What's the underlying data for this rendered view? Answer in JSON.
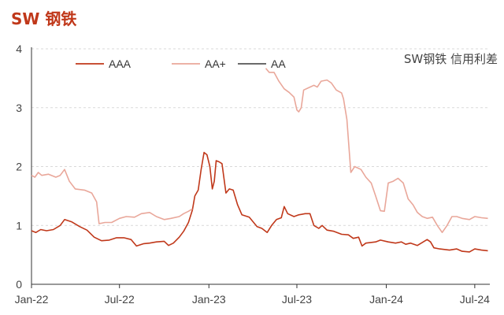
{
  "title": "SW 钢铁",
  "chart_data": {
    "type": "line",
    "subtitle": "SW钢铁 信用利差",
    "x_range": [
      "2022-01-01",
      "2024-08-01"
    ],
    "x_ticks": [
      "Jan-22",
      "Jul-22",
      "Jan-23",
      "Jul-23",
      "Jan-24",
      "Jul-24"
    ],
    "x_tick_dates": [
      "2022-01-01",
      "2022-07-01",
      "2023-01-01",
      "2023-07-01",
      "2024-01-01",
      "2024-07-01"
    ],
    "ylim": [
      0,
      4
    ],
    "y_ticks": [
      "0",
      "1",
      "2",
      "3",
      "4"
    ],
    "grid": true,
    "legend_position": "top",
    "series": [
      {
        "name": "AAA",
        "color": "#c0381a",
        "points": [
          [
            "2022-01-01",
            0.91
          ],
          [
            "2022-01-10",
            0.88
          ],
          [
            "2022-01-20",
            0.93
          ],
          [
            "2022-02-01",
            0.91
          ],
          [
            "2022-02-15",
            0.93
          ],
          [
            "2022-03-01",
            1.0
          ],
          [
            "2022-03-10",
            1.1
          ],
          [
            "2022-03-25",
            1.06
          ],
          [
            "2022-04-10",
            0.98
          ],
          [
            "2022-04-25",
            0.92
          ],
          [
            "2022-05-10",
            0.8
          ],
          [
            "2022-05-25",
            0.74
          ],
          [
            "2022-06-10",
            0.75
          ],
          [
            "2022-06-25",
            0.79
          ],
          [
            "2022-07-10",
            0.79
          ],
          [
            "2022-07-25",
            0.76
          ],
          [
            "2022-08-05",
            0.65
          ],
          [
            "2022-08-20",
            0.69
          ],
          [
            "2022-09-01",
            0.7
          ],
          [
            "2022-09-15",
            0.72
          ],
          [
            "2022-10-01",
            0.73
          ],
          [
            "2022-10-10",
            0.66
          ],
          [
            "2022-10-20",
            0.7
          ],
          [
            "2022-11-01",
            0.8
          ],
          [
            "2022-11-10",
            0.9
          ],
          [
            "2022-11-20",
            1.05
          ],
          [
            "2022-11-28",
            1.26
          ],
          [
            "2022-12-03",
            1.5
          ],
          [
            "2022-12-10",
            1.6
          ],
          [
            "2022-12-16",
            1.95
          ],
          [
            "2022-12-22",
            2.24
          ],
          [
            "2022-12-28",
            2.2
          ],
          [
            "2023-01-03",
            2.0
          ],
          [
            "2023-01-08",
            1.62
          ],
          [
            "2023-01-12",
            1.75
          ],
          [
            "2023-01-16",
            2.1
          ],
          [
            "2023-01-22",
            2.08
          ],
          [
            "2023-01-28",
            2.05
          ],
          [
            "2023-02-05",
            1.55
          ],
          [
            "2023-02-12",
            1.62
          ],
          [
            "2023-02-20",
            1.6
          ],
          [
            "2023-03-01",
            1.35
          ],
          [
            "2023-03-10",
            1.18
          ],
          [
            "2023-03-25",
            1.14
          ],
          [
            "2023-04-10",
            0.98
          ],
          [
            "2023-04-20",
            0.95
          ],
          [
            "2023-05-01",
            0.88
          ],
          [
            "2023-05-10",
            1.0
          ],
          [
            "2023-05-20",
            1.1
          ],
          [
            "2023-05-30",
            1.13
          ],
          [
            "2023-06-05",
            1.32
          ],
          [
            "2023-06-12",
            1.2
          ],
          [
            "2023-06-25",
            1.15
          ],
          [
            "2023-07-05",
            1.18
          ],
          [
            "2023-07-18",
            1.2
          ],
          [
            "2023-07-28",
            1.2
          ],
          [
            "2023-08-05",
            1.0
          ],
          [
            "2023-08-15",
            0.95
          ],
          [
            "2023-08-22",
            1.0
          ],
          [
            "2023-09-01",
            0.92
          ],
          [
            "2023-09-15",
            0.9
          ],
          [
            "2023-10-01",
            0.85
          ],
          [
            "2023-10-15",
            0.84
          ],
          [
            "2023-10-25",
            0.78
          ],
          [
            "2023-11-05",
            0.8
          ],
          [
            "2023-11-12",
            0.65
          ],
          [
            "2023-11-20",
            0.7
          ],
          [
            "2023-12-10",
            0.72
          ],
          [
            "2023-12-20",
            0.75
          ],
          [
            "2024-01-05",
            0.72
          ],
          [
            "2024-01-20",
            0.7
          ],
          [
            "2024-02-01",
            0.72
          ],
          [
            "2024-02-10",
            0.68
          ],
          [
            "2024-02-20",
            0.7
          ],
          [
            "2024-03-05",
            0.66
          ],
          [
            "2024-03-25",
            0.76
          ],
          [
            "2024-04-01",
            0.72
          ],
          [
            "2024-04-08",
            0.62
          ],
          [
            "2024-04-20",
            0.6
          ],
          [
            "2024-05-10",
            0.58
          ],
          [
            "2024-05-25",
            0.6
          ],
          [
            "2024-06-05",
            0.56
          ],
          [
            "2024-06-20",
            0.55
          ],
          [
            "2024-07-01",
            0.6
          ],
          [
            "2024-07-15",
            0.58
          ],
          [
            "2024-07-28",
            0.57
          ]
        ]
      },
      {
        "name": "AA+",
        "color": "#e9a79a",
        "points": [
          [
            "2022-01-01",
            1.85
          ],
          [
            "2022-01-08",
            1.82
          ],
          [
            "2022-01-15",
            1.9
          ],
          [
            "2022-01-22",
            1.85
          ],
          [
            "2022-02-05",
            1.87
          ],
          [
            "2022-02-20",
            1.82
          ],
          [
            "2022-03-01",
            1.85
          ],
          [
            "2022-03-10",
            1.95
          ],
          [
            "2022-03-20",
            1.75
          ],
          [
            "2022-04-01",
            1.62
          ],
          [
            "2022-04-20",
            1.6
          ],
          [
            "2022-05-05",
            1.55
          ],
          [
            "2022-05-15",
            1.4
          ],
          [
            "2022-05-20",
            1.03
          ],
          [
            "2022-06-01",
            1.05
          ],
          [
            "2022-06-15",
            1.05
          ],
          [
            "2022-07-01",
            1.12
          ],
          [
            "2022-07-15",
            1.15
          ],
          [
            "2022-08-01",
            1.14
          ],
          [
            "2022-08-15",
            1.2
          ],
          [
            "2022-09-01",
            1.22
          ],
          [
            "2022-09-15",
            1.15
          ],
          [
            "2022-10-01",
            1.1
          ],
          [
            "2022-10-15",
            1.12
          ],
          [
            "2022-11-01",
            1.15
          ],
          [
            "2022-11-10",
            1.2
          ],
          [
            "2022-11-20",
            1.24
          ],
          [
            "2022-11-28",
            1.28
          ],
          [
            "2022-12-01",
            null
          ],
          [
            "2023-04-25",
            null
          ],
          [
            "2023-04-28",
            3.67
          ],
          [
            "2023-05-05",
            3.6
          ],
          [
            "2023-05-15",
            3.6
          ],
          [
            "2023-05-25",
            3.45
          ],
          [
            "2023-06-05",
            3.32
          ],
          [
            "2023-06-15",
            3.26
          ],
          [
            "2023-06-25",
            3.18
          ],
          [
            "2023-07-01",
            2.96
          ],
          [
            "2023-07-05",
            2.93
          ],
          [
            "2023-07-10",
            3.0
          ],
          [
            "2023-07-15",
            3.3
          ],
          [
            "2023-07-28",
            3.35
          ],
          [
            "2023-08-05",
            3.38
          ],
          [
            "2023-08-12",
            3.35
          ],
          [
            "2023-08-20",
            3.45
          ],
          [
            "2023-09-01",
            3.47
          ],
          [
            "2023-09-10",
            3.42
          ],
          [
            "2023-09-20",
            3.3
          ],
          [
            "2023-10-01",
            3.25
          ],
          [
            "2023-10-05",
            3.15
          ],
          [
            "2023-10-12",
            2.8
          ],
          [
            "2023-10-20",
            1.9
          ],
          [
            "2023-10-28",
            2.0
          ],
          [
            "2023-11-10",
            1.95
          ],
          [
            "2023-11-20",
            1.82
          ],
          [
            "2023-12-01",
            1.72
          ],
          [
            "2023-12-10",
            1.5
          ],
          [
            "2023-12-20",
            1.25
          ],
          [
            "2023-12-28",
            1.24
          ],
          [
            "2024-01-05",
            1.72
          ],
          [
            "2024-01-15",
            1.75
          ],
          [
            "2024-01-25",
            1.8
          ],
          [
            "2024-02-05",
            1.72
          ],
          [
            "2024-02-15",
            1.45
          ],
          [
            "2024-02-25",
            1.35
          ],
          [
            "2024-03-05",
            1.22
          ],
          [
            "2024-03-15",
            1.15
          ],
          [
            "2024-03-25",
            1.12
          ],
          [
            "2024-04-05",
            1.14
          ],
          [
            "2024-04-15",
            1.0
          ],
          [
            "2024-04-25",
            0.88
          ],
          [
            "2024-05-05",
            1.0
          ],
          [
            "2024-05-15",
            1.15
          ],
          [
            "2024-05-25",
            1.15
          ],
          [
            "2024-06-05",
            1.12
          ],
          [
            "2024-06-20",
            1.1
          ],
          [
            "2024-07-01",
            1.15
          ],
          [
            "2024-07-15",
            1.13
          ],
          [
            "2024-07-28",
            1.12
          ]
        ]
      },
      {
        "name": "AA",
        "color": "#555555",
        "points": []
      }
    ]
  }
}
